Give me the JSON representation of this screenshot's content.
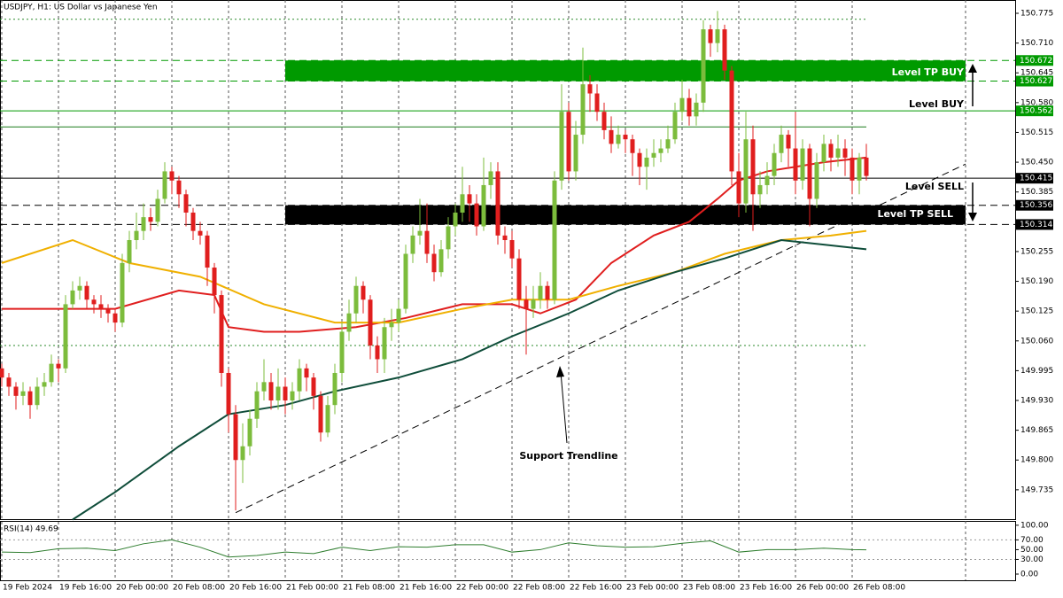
{
  "chart_data": {
    "type": "candlestick",
    "title": "USDJPY, H1:  US Dollar vs Japanese Yen",
    "up_color": "#7cbc3c",
    "down_color": "#e01e1e",
    "xlim": [
      -0.25,
      143
    ],
    "ylim": [
      149.669,
      150.804
    ],
    "xticks": [
      {
        "value": 0,
        "label": "19 Feb 2024"
      },
      {
        "value": 8,
        "label": "19 Feb 16:00"
      },
      {
        "value": 16,
        "label": "20 Feb 00:00"
      },
      {
        "value": 24,
        "label": "20 Feb 08:00"
      },
      {
        "value": 32,
        "label": "20 Feb 16:00"
      },
      {
        "value": 40,
        "label": "21 Feb 00:00"
      },
      {
        "value": 48,
        "label": "21 Feb 08:00"
      },
      {
        "value": 56,
        "label": "21 Feb 16:00"
      },
      {
        "value": 64,
        "label": "22 Feb 00:00"
      },
      {
        "value": 72,
        "label": "22 Feb 08:00"
      },
      {
        "value": 80,
        "label": "22 Feb 16:00"
      },
      {
        "value": 88,
        "label": "23 Feb 00:00"
      },
      {
        "value": 96,
        "label": "23 Feb 08:00"
      },
      {
        "value": 104,
        "label": "23 Feb 16:00"
      },
      {
        "value": 112,
        "label": "26 Feb 00:00"
      },
      {
        "value": 120,
        "label": "26 Feb 08:00"
      }
    ],
    "yticks": [
      150.775,
      {
        "value": 150.71,
        "label": "150.710"
      },
      150.645,
      {
        "value": 150.58,
        "label": "150.580"
      },
      150.515,
      {
        "value": 150.45,
        "label": "150.450"
      },
      150.385,
      150.255,
      {
        "value": 150.19,
        "label": "150.190"
      },
      150.125,
      {
        "value": 150.06,
        "label": "150.060"
      },
      149.995,
      {
        "value": 149.93,
        "label": "149.930"
      },
      149.865,
      {
        "value": 149.8,
        "label": "149.800"
      },
      149.735
    ],
    "grid": true,
    "candles": [
      [
        150.0,
        150.01,
        149.96,
        149.98
      ],
      [
        149.98,
        149.99,
        149.94,
        149.96
      ],
      [
        149.96,
        149.97,
        149.91,
        149.94
      ],
      [
        149.94,
        149.97,
        149.92,
        149.95
      ],
      [
        149.95,
        149.96,
        149.89,
        149.92
      ],
      [
        149.92,
        149.98,
        149.91,
        149.96
      ],
      [
        149.96,
        149.99,
        149.94,
        149.97
      ],
      [
        149.97,
        150.03,
        149.96,
        150.01
      ],
      [
        150.01,
        150.02,
        149.97,
        150.0
      ],
      [
        150.0,
        150.16,
        149.99,
        150.14
      ],
      [
        150.14,
        150.19,
        150.13,
        150.17
      ],
      [
        150.17,
        150.2,
        150.15,
        150.18
      ],
      [
        150.18,
        150.19,
        150.13,
        150.15
      ],
      [
        150.15,
        150.16,
        150.12,
        150.14
      ],
      [
        150.14,
        150.16,
        150.11,
        150.13
      ],
      [
        150.13,
        150.14,
        150.1,
        150.12
      ],
      [
        150.12,
        150.13,
        150.08,
        150.1
      ],
      [
        150.1,
        150.25,
        150.09,
        150.23
      ],
      [
        150.23,
        150.3,
        150.21,
        150.28
      ],
      [
        150.28,
        150.34,
        150.26,
        150.3
      ],
      [
        150.3,
        150.36,
        150.28,
        150.33
      ],
      [
        150.33,
        150.35,
        150.3,
        150.32
      ],
      [
        150.32,
        150.39,
        150.31,
        150.37
      ],
      [
        150.37,
        150.45,
        150.36,
        150.43
      ],
      [
        150.43,
        150.44,
        150.38,
        150.41
      ],
      [
        150.41,
        150.42,
        150.35,
        150.38
      ],
      [
        150.38,
        150.39,
        150.31,
        150.34
      ],
      [
        150.34,
        150.35,
        150.28,
        150.3
      ],
      [
        150.3,
        150.32,
        150.27,
        150.29
      ],
      [
        150.29,
        150.3,
        150.18,
        150.22
      ],
      [
        150.22,
        150.23,
        150.12,
        150.16
      ],
      [
        150.16,
        150.17,
        149.96,
        149.99
      ],
      [
        149.99,
        150.0,
        149.86,
        149.9
      ],
      [
        149.9,
        149.92,
        149.69,
        149.8
      ],
      [
        149.8,
        149.88,
        149.75,
        149.83
      ],
      [
        149.83,
        149.91,
        149.81,
        149.89
      ],
      [
        149.89,
        149.97,
        149.87,
        149.95
      ],
      [
        149.95,
        150.02,
        149.93,
        149.97
      ],
      [
        149.97,
        149.99,
        149.91,
        149.93
      ],
      [
        149.93,
        150.0,
        149.91,
        149.96
      ],
      [
        149.96,
        149.98,
        149.9,
        149.93
      ],
      [
        149.93,
        149.97,
        149.91,
        149.95
      ],
      [
        149.95,
        150.02,
        149.93,
        150.0
      ],
      [
        150.0,
        150.01,
        149.95,
        149.98
      ],
      [
        149.98,
        149.99,
        149.91,
        149.94
      ],
      [
        149.94,
        149.95,
        149.84,
        149.86
      ],
      [
        149.86,
        149.94,
        149.85,
        149.92
      ],
      [
        149.92,
        150.01,
        149.9,
        149.99
      ],
      [
        149.99,
        150.1,
        149.97,
        150.08
      ],
      [
        150.08,
        150.15,
        150.06,
        150.12
      ],
      [
        150.12,
        150.2,
        150.1,
        150.18
      ],
      [
        150.18,
        150.19,
        150.12,
        150.15
      ],
      [
        150.15,
        150.16,
        150.02,
        150.05
      ],
      [
        150.05,
        150.07,
        149.99,
        150.02
      ],
      [
        150.02,
        150.11,
        149.99,
        150.09
      ],
      [
        150.09,
        150.13,
        150.06,
        150.1
      ],
      [
        150.1,
        150.15,
        150.08,
        150.13
      ],
      [
        150.13,
        150.27,
        150.12,
        150.25
      ],
      [
        150.25,
        150.31,
        150.23,
        150.29
      ],
      [
        150.29,
        150.37,
        150.27,
        150.3
      ],
      [
        150.3,
        150.36,
        150.23,
        150.25
      ],
      [
        150.25,
        150.27,
        150.19,
        150.21
      ],
      [
        150.21,
        150.28,
        150.2,
        150.26
      ],
      [
        150.26,
        150.33,
        150.24,
        150.31
      ],
      [
        150.31,
        150.36,
        150.29,
        150.34
      ],
      [
        150.34,
        150.44,
        150.32,
        150.38
      ],
      [
        150.38,
        150.4,
        150.32,
        150.36
      ],
      [
        150.36,
        150.38,
        150.29,
        150.31
      ],
      [
        150.31,
        150.46,
        150.3,
        150.4
      ],
      [
        150.4,
        150.45,
        150.37,
        150.43
      ],
      [
        150.43,
        150.45,
        150.27,
        150.29
      ],
      [
        150.29,
        150.31,
        150.25,
        150.28
      ],
      [
        150.28,
        150.3,
        150.22,
        150.24
      ],
      [
        150.24,
        150.26,
        150.13,
        150.15
      ],
      [
        150.15,
        150.18,
        150.03,
        150.13
      ],
      [
        150.13,
        150.18,
        150.11,
        150.15
      ],
      [
        150.15,
        150.21,
        150.13,
        150.18
      ],
      [
        150.18,
        150.19,
        150.13,
        150.15
      ],
      [
        150.15,
        150.43,
        150.14,
        150.41
      ],
      [
        150.41,
        150.62,
        150.39,
        150.56
      ],
      [
        150.56,
        150.58,
        150.41,
        150.43
      ],
      [
        150.43,
        150.54,
        150.41,
        150.51
      ],
      [
        150.51,
        150.7,
        150.49,
        150.62
      ],
      [
        150.62,
        150.64,
        150.56,
        150.6
      ],
      [
        150.6,
        150.62,
        150.54,
        150.56
      ],
      [
        150.56,
        150.58,
        150.5,
        150.52
      ],
      [
        150.52,
        150.55,
        150.47,
        150.49
      ],
      [
        150.49,
        150.53,
        150.48,
        150.51
      ],
      [
        150.51,
        150.52,
        150.47,
        150.5
      ],
      [
        150.5,
        150.51,
        150.42,
        150.47
      ],
      [
        150.47,
        150.48,
        150.4,
        150.44
      ],
      [
        150.44,
        150.48,
        150.39,
        150.46
      ],
      [
        150.46,
        150.5,
        150.44,
        150.47
      ],
      [
        150.47,
        150.5,
        150.45,
        150.48
      ],
      [
        150.48,
        150.53,
        150.47,
        150.5
      ],
      [
        150.5,
        150.58,
        150.49,
        150.56
      ],
      [
        150.56,
        150.63,
        150.54,
        150.59
      ],
      [
        150.59,
        150.61,
        150.53,
        150.55
      ],
      [
        150.55,
        150.6,
        150.53,
        150.58
      ],
      [
        150.58,
        150.76,
        150.56,
        150.74
      ],
      [
        150.74,
        150.75,
        150.68,
        150.71
      ],
      [
        150.71,
        150.78,
        150.69,
        150.74
      ],
      [
        150.74,
        150.75,
        150.63,
        150.65
      ],
      [
        150.65,
        150.66,
        150.4,
        150.43
      ],
      [
        150.43,
        150.47,
        150.33,
        150.36
      ],
      [
        150.36,
        150.56,
        150.34,
        150.5
      ],
      [
        150.5,
        150.53,
        150.3,
        150.38
      ],
      [
        150.38,
        150.43,
        150.35,
        150.4
      ],
      [
        150.4,
        150.45,
        150.38,
        150.42
      ],
      [
        150.42,
        150.49,
        150.4,
        150.47
      ],
      [
        150.47,
        150.53,
        150.45,
        150.51
      ],
      [
        150.51,
        150.52,
        150.44,
        150.48
      ],
      [
        150.48,
        150.56,
        150.38,
        150.41
      ],
      [
        150.41,
        150.5,
        150.39,
        150.48
      ],
      [
        150.48,
        150.49,
        150.31,
        150.37
      ],
      [
        150.37,
        150.47,
        150.35,
        150.45
      ],
      [
        150.45,
        150.51,
        150.43,
        150.49
      ],
      [
        150.49,
        150.5,
        150.43,
        150.46
      ],
      [
        150.46,
        150.51,
        150.44,
        150.48
      ],
      [
        150.48,
        150.5,
        150.42,
        150.46
      ],
      [
        150.46,
        150.48,
        150.38,
        150.41
      ],
      [
        150.41,
        150.47,
        150.38,
        150.46
      ],
      [
        150.46,
        150.49,
        150.41,
        150.42
      ]
    ],
    "series": [
      {
        "color": "#e01e1e",
        "x": [
          0,
          16,
          25,
          30,
          32,
          37,
          42,
          50,
          57,
          65,
          72,
          76,
          81,
          86,
          92,
          97,
          101,
          104,
          108,
          116,
          122
        ],
        "values": [
          150.13,
          150.13,
          150.17,
          150.16,
          150.09,
          150.08,
          150.08,
          150.09,
          150.11,
          150.14,
          150.14,
          150.12,
          150.15,
          150.23,
          150.29,
          150.32,
          150.37,
          150.41,
          150.43,
          150.45,
          150.46
        ]
      },
      {
        "color": "#f0b000",
        "x": [
          0,
          10,
          18,
          28,
          37,
          47,
          56,
          65,
          72,
          80,
          87,
          95,
          102,
          110,
          117,
          122
        ],
        "values": [
          150.23,
          150.28,
          150.23,
          150.2,
          150.14,
          150.1,
          150.1,
          150.13,
          150.15,
          150.15,
          150.18,
          150.21,
          150.25,
          150.28,
          150.29,
          150.3
        ]
      },
      {
        "color": "#0f4d3a",
        "x": [
          10,
          16,
          25,
          32,
          40,
          47,
          56,
          65,
          72,
          80,
          87,
          95,
          102,
          110,
          116,
          122
        ],
        "values": [
          149.67,
          149.73,
          149.83,
          149.9,
          149.92,
          149.95,
          149.98,
          150.02,
          150.07,
          150.12,
          150.17,
          150.21,
          150.24,
          150.28,
          150.27,
          150.26
        ]
      }
    ],
    "levels": [
      {
        "value": 150.672,
        "color": "#009a00",
        "style": "dashed"
      },
      {
        "value": 150.627,
        "color": "#009a00",
        "style": "dashed"
      },
      {
        "value": 150.562,
        "color": "#009a00",
        "style": "solid"
      },
      {
        "value": 150.415,
        "color": "#000000",
        "style": "solid"
      },
      {
        "value": 150.356,
        "color": "#000000",
        "style": "dashed"
      },
      {
        "value": 150.314,
        "color": "#000000",
        "style": "dashed"
      }
    ],
    "hlines": [
      {
        "value": 150.762,
        "color": "#2a8a2a",
        "style": "dotted"
      },
      {
        "value": 150.527,
        "color": "#1a7a1a",
        "style": "solid"
      },
      {
        "value": 150.05,
        "color": "#2a8a2a",
        "style": "dotted"
      }
    ],
    "zones": [
      {
        "from": 150.627,
        "to": 150.672,
        "color": "#009a00"
      },
      {
        "from": 150.314,
        "to": 150.356,
        "color": "#000000"
      }
    ],
    "trendline": {
      "x": [
        33,
        136
      ],
      "values": [
        149.685,
        150.446
      ]
    },
    "annotations": {
      "tp_buy": "Level TP BUY",
      "buy": "Level BUY",
      "sell": "Level SELL",
      "tp_sell": "Level TP SELL",
      "trend": "Support Trendline"
    },
    "rsi": {
      "label": "RSI(14) 49.69",
      "color": "#2e7d2e",
      "ylim": [
        -12.7,
        107
      ],
      "yticks": [
        {
          "value": 100,
          "label": "100.00"
        },
        {
          "value": 70,
          "label": "70.00"
        },
        {
          "value": 50,
          "label": "50.00"
        },
        {
          "value": 30,
          "label": "30.00"
        },
        {
          "value": 0,
          "label": "0.00"
        }
      ],
      "levels": [
        70,
        30
      ],
      "x": [
        0,
        4,
        8,
        12,
        16,
        20,
        24,
        28,
        32,
        36,
        40,
        44,
        48,
        52,
        56,
        60,
        64,
        68,
        72,
        76,
        80,
        84,
        88,
        92,
        96,
        100,
        104,
        108,
        112,
        116,
        120,
        122
      ],
      "values": [
        45,
        44,
        52,
        53,
        48,
        62,
        70,
        55,
        35,
        38,
        45,
        42,
        55,
        48,
        56,
        55,
        60,
        60,
        45,
        50,
        64,
        58,
        55,
        56,
        63,
        68,
        45,
        50,
        50,
        53,
        50,
        49.69
      ]
    }
  }
}
